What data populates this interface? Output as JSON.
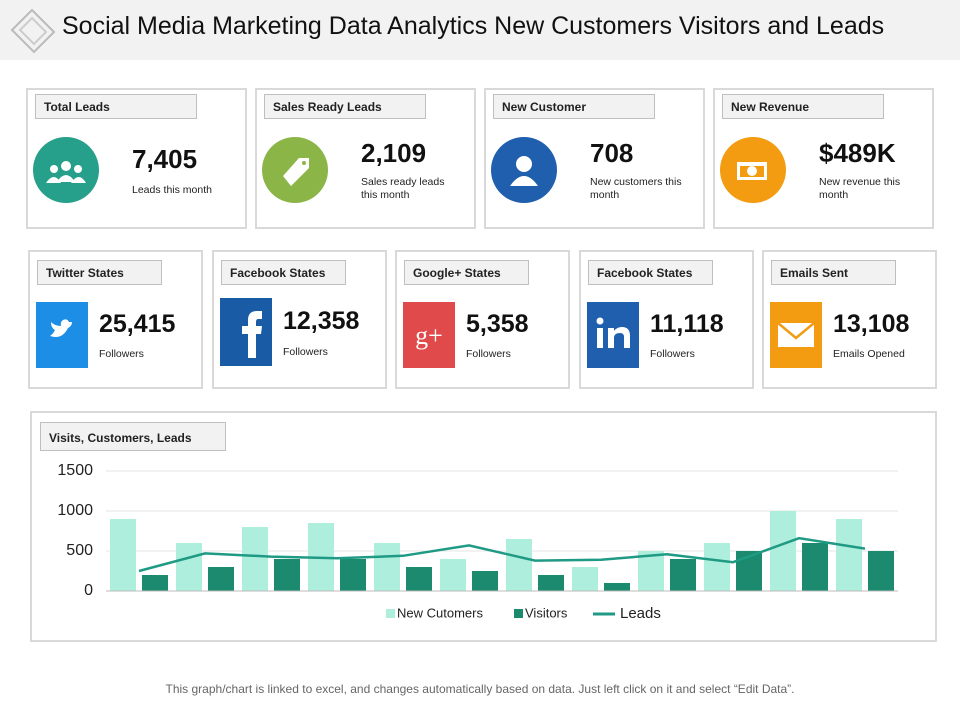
{
  "header": {
    "title": "Social Media Marketing Data Analytics New Customers Visitors and Leads"
  },
  "top_cards": [
    {
      "label": "Total Leads",
      "value": "7,405",
      "caption": "Leads this month",
      "color": "#26a08a"
    },
    {
      "label": "Sales Ready Leads",
      "value": "2,109",
      "caption": "Sales ready leads this month",
      "color": "#8cb548"
    },
    {
      "label": "New Customer",
      "value": "708",
      "caption": "New customers this month",
      "color": "#1f5fae"
    },
    {
      "label": "New Revenue",
      "value": "$489K",
      "caption": "New revenue this month",
      "color": "#f39c12"
    }
  ],
  "social_cards": [
    {
      "label": "Twitter States",
      "value": "25,415",
      "caption": "Followers",
      "color": "#1d8ee6"
    },
    {
      "label": "Facebook States",
      "value": "12,358",
      "caption": "Followers",
      "color": "#1a5ba6"
    },
    {
      "label": "Google+  States",
      "value": "5,358",
      "caption": "Followers",
      "color": "#e04a4a"
    },
    {
      "label": "Facebook States",
      "value": "11,118",
      "caption": "Followers",
      "color": "#1f5fae"
    },
    {
      "label": "Emails Sent",
      "value": "13,108",
      "caption": "Emails  Opened",
      "color": "#f39c12"
    }
  ],
  "chart_data": {
    "type": "bar",
    "title": "Visits, Customers, Leads",
    "categories": [
      null,
      null,
      null,
      null,
      null,
      null,
      null,
      null,
      null,
      null,
      null,
      null
    ],
    "series": [
      {
        "name": "New Cutomers",
        "color": "#aeeedd",
        "values": [
          900,
          600,
          800,
          850,
          600,
          400,
          650,
          300,
          500,
          600,
          1000,
          900
        ]
      },
      {
        "name": "Visitors",
        "color": "#1b8a6e",
        "values": [
          200,
          300,
          400,
          400,
          300,
          250,
          200,
          100,
          400,
          500,
          600,
          500
        ]
      },
      {
        "name": "Leads",
        "type": "line",
        "color": "#1f9a84",
        "values": [
          250,
          470,
          430,
          410,
          440,
          570,
          380,
          390,
          460,
          360,
          660,
          530
        ]
      }
    ],
    "ylim": [
      0,
      1500
    ],
    "yticks": [
      0,
      500,
      1000,
      1500
    ],
    "grid": true,
    "legend": "bottom"
  },
  "footer": {
    "text": "This graph/chart is linked to excel, and changes automatically based on data. Just left click on it and select “Edit Data”."
  }
}
